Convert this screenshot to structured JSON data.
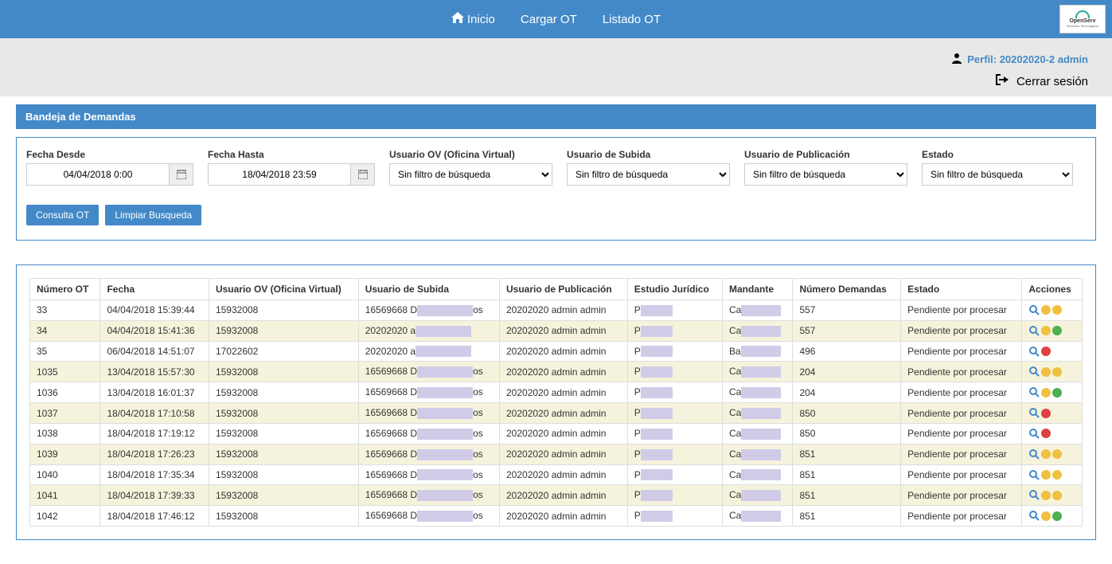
{
  "nav": {
    "inicio": "Inicio",
    "cargar": "Cargar OT",
    "listado": "Listado OT",
    "logo_main": "OpenServ",
    "logo_sub": "Servicios Tecnológicos"
  },
  "header": {
    "perfil_label": "Perfil: 20202020-2 admin",
    "logout_label": "Cerrar sesión"
  },
  "panel": {
    "title": "Bandeja de Demandas"
  },
  "filters": {
    "fecha_desde_label": "Fecha Desde",
    "fecha_desde_value": "04/04/2018 0:00",
    "fecha_hasta_label": "Fecha Hasta",
    "fecha_hasta_value": "18/04/2018 23:59",
    "usuario_ov_label": "Usuario OV (Oficina Virtual)",
    "usuario_subida_label": "Usuario de Subida",
    "usuario_pub_label": "Usuario de Publicación",
    "estado_label": "Estado",
    "sin_filtro": "Sin filtro de búsqueda",
    "consulta_btn": "Consulta OT",
    "limpiar_btn": "Limpiar Busqueda"
  },
  "columns": {
    "c0": "Número OT",
    "c1": "Fecha",
    "c2": "Usuario OV (Oficina Virtual)",
    "c3": "Usuario de Subida",
    "c4": "Usuario de Publicación",
    "c5": "Estudio Jurídico",
    "c6": "Mandante",
    "c7": "Número Demandas",
    "c8": "Estado",
    "c9": "Acciones"
  },
  "rows": [
    {
      "num": "33",
      "fecha": "04/04/2018 15:39:44",
      "uov": "15932008",
      "usub_a": "16569668 D",
      "usub_b": "os",
      "upub": "20202020 admin admin",
      "ej_a": "P",
      "ej_b": "",
      "man_a": "Ca",
      "man_b": "",
      "ndem": "557",
      "est": "Pendiente por procesar",
      "act": [
        "mag",
        "circ-yellow",
        "circ-yellow"
      ]
    },
    {
      "num": "34",
      "fecha": "04/04/2018 15:41:36",
      "uov": "15932008",
      "usub_a": "20202020 a",
      "usub_b": "",
      "upub": "20202020 admin admin",
      "ej_a": "P",
      "ej_b": "",
      "man_a": "Ca",
      "man_b": "",
      "ndem": "557",
      "est": "Pendiente por procesar",
      "act": [
        "mag",
        "circ-yellow",
        "circ-green"
      ]
    },
    {
      "num": "35",
      "fecha": "06/04/2018 14:51:07",
      "uov": "17022602",
      "usub_a": "20202020 a",
      "usub_b": "",
      "upub": "20202020 admin admin",
      "ej_a": "P",
      "ej_b": "",
      "man_a": "Ba",
      "man_b": "",
      "ndem": "496",
      "est": "Pendiente por procesar",
      "act": [
        "mag",
        "circ-red"
      ]
    },
    {
      "num": "1035",
      "fecha": "13/04/2018 15:57:30",
      "uov": "15932008",
      "usub_a": "16569668 D",
      "usub_b": "os",
      "upub": "20202020 admin admin",
      "ej_a": "P",
      "ej_b": "",
      "man_a": "Ca",
      "man_b": "",
      "ndem": "204",
      "est": "Pendiente por procesar",
      "act": [
        "mag",
        "circ-yellow",
        "circ-yellow"
      ]
    },
    {
      "num": "1036",
      "fecha": "13/04/2018 16:01:37",
      "uov": "15932008",
      "usub_a": "16569668 D",
      "usub_b": "os",
      "upub": "20202020 admin admin",
      "ej_a": "P",
      "ej_b": "",
      "man_a": "Ca",
      "man_b": "",
      "ndem": "204",
      "est": "Pendiente por procesar",
      "act": [
        "mag",
        "circ-yellow",
        "circ-green"
      ]
    },
    {
      "num": "1037",
      "fecha": "18/04/2018 17:10:58",
      "uov": "15932008",
      "usub_a": "16569668 D",
      "usub_b": "os",
      "upub": "20202020 admin admin",
      "ej_a": "P",
      "ej_b": "",
      "man_a": "Ca",
      "man_b": "",
      "ndem": "850",
      "est": "Pendiente por procesar",
      "act": [
        "mag",
        "circ-red"
      ]
    },
    {
      "num": "1038",
      "fecha": "18/04/2018 17:19:12",
      "uov": "15932008",
      "usub_a": "16569668 D",
      "usub_b": "os",
      "upub": "20202020 admin admin",
      "ej_a": "P",
      "ej_b": "",
      "man_a": "Ca",
      "man_b": "",
      "ndem": "850",
      "est": "Pendiente por procesar",
      "act": [
        "mag",
        "circ-red"
      ]
    },
    {
      "num": "1039",
      "fecha": "18/04/2018 17:26:23",
      "uov": "15932008",
      "usub_a": "16569668 D",
      "usub_b": "os",
      "upub": "20202020 admin admin",
      "ej_a": "P",
      "ej_b": "",
      "man_a": "Ca",
      "man_b": "",
      "ndem": "851",
      "est": "Pendiente por procesar",
      "act": [
        "mag",
        "circ-yellow",
        "circ-yellow"
      ]
    },
    {
      "num": "1040",
      "fecha": "18/04/2018 17:35:34",
      "uov": "15932008",
      "usub_a": "16569668 D",
      "usub_b": "os",
      "upub": "20202020 admin admin",
      "ej_a": "P",
      "ej_b": "",
      "man_a": "Ca",
      "man_b": "",
      "ndem": "851",
      "est": "Pendiente por procesar",
      "act": [
        "mag",
        "circ-yellow",
        "circ-yellow"
      ]
    },
    {
      "num": "1041",
      "fecha": "18/04/2018 17:39:33",
      "uov": "15932008",
      "usub_a": "16569668 D",
      "usub_b": "os",
      "upub": "20202020 admin admin",
      "ej_a": "P",
      "ej_b": "",
      "man_a": "Ca",
      "man_b": "",
      "ndem": "851",
      "est": "Pendiente por procesar",
      "act": [
        "mag",
        "circ-yellow",
        "circ-yellow"
      ]
    },
    {
      "num": "1042",
      "fecha": "18/04/2018 17:46:12",
      "uov": "15932008",
      "usub_a": "16569668 D",
      "usub_b": "os",
      "upub": "20202020 admin admin",
      "ej_a": "P",
      "ej_b": "",
      "man_a": "Ca",
      "man_b": "",
      "ndem": "851",
      "est": "Pendiente por procesar",
      "act": [
        "mag",
        "circ-yellow",
        "circ-green"
      ]
    }
  ],
  "style": {
    "primary": "#4389c8",
    "row_alt": "#f6f3dc",
    "redact": "#d0cce8"
  }
}
